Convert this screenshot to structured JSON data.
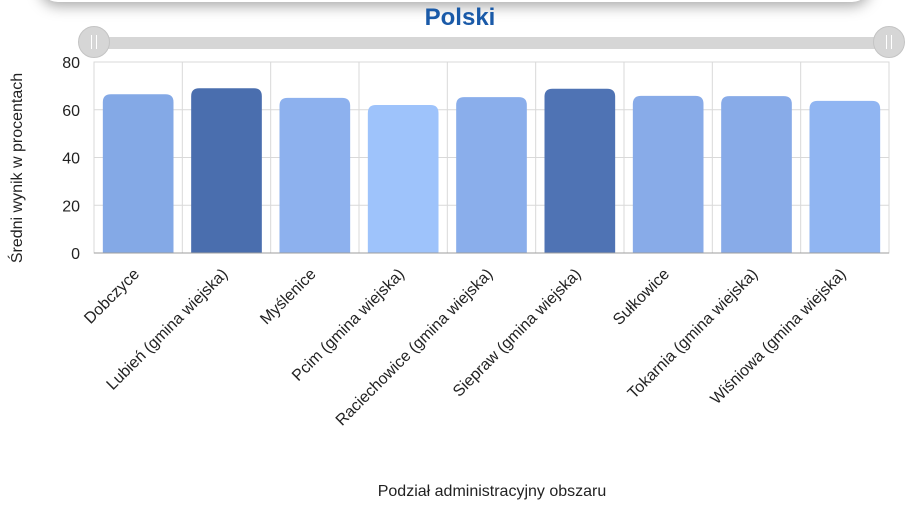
{
  "header": {
    "title": "Polski"
  },
  "slider": {
    "left_icon": "grip-icon",
    "right_icon": "grip-icon"
  },
  "colors": {
    "title": "#1a5aa8",
    "grid": "#d9d9d9",
    "axis": "#9e9e9e"
  },
  "chart_data": {
    "type": "bar",
    "title": "Polski",
    "xlabel": "Podział administracyjny obszaru",
    "ylabel": "Średni wynik w procentach",
    "ylim": [
      0,
      80
    ],
    "yticks": [
      0,
      20,
      40,
      60,
      80
    ],
    "grid": true,
    "categories": [
      "Dobczyce",
      "Lubień (gmina wiejska)",
      "Myślenice",
      "Pcim (gmina wiejska)",
      "Raciechowice (gmina wiejska)",
      "Siepraw (gmina wiejska)",
      "Sułkowice",
      "Tokarnia (gmina wiejska)",
      "Wiśniowa (gmina wiejska)"
    ],
    "values": [
      66.5,
      69,
      65,
      62,
      65.3,
      68.8,
      65.8,
      65.7,
      63.7
    ],
    "bar_colors": [
      "#84a9e6",
      "#4a6eae",
      "#8db1ee",
      "#9ec3fb",
      "#8aaeeb",
      "#4f73b4",
      "#88abe8",
      "#88abe8",
      "#90b5f2"
    ]
  }
}
